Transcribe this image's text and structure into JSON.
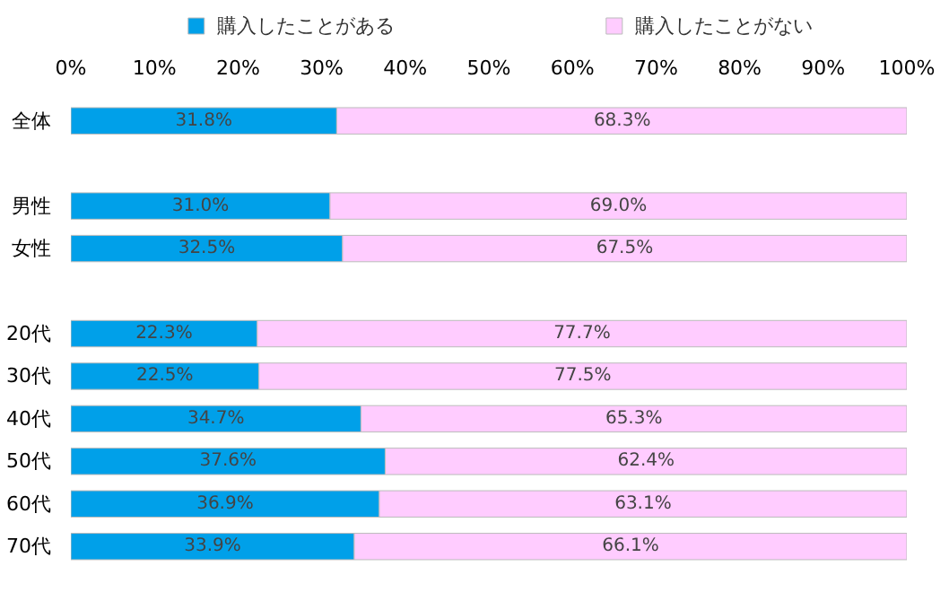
{
  "chart_data": {
    "type": "bar",
    "orientation": "horizontal",
    "stacked": true,
    "categories": [
      "全体",
      null,
      "男性",
      "女性",
      null,
      "20代",
      "30代",
      "40代",
      "50代",
      "60代",
      "70代"
    ],
    "series": [
      {
        "name": "購入したことがある",
        "color": "#00a0e9",
        "values": [
          31.8,
          null,
          31.0,
          32.5,
          null,
          22.3,
          22.5,
          34.7,
          37.6,
          36.9,
          33.9
        ],
        "value_labels": [
          "31.8%",
          null,
          "31.0%",
          "32.5%",
          null,
          "22.3%",
          "22.5%",
          "34.7%",
          "37.6%",
          "36.9%",
          "33.9%"
        ]
      },
      {
        "name": "購入したことがない",
        "color": "#ffccff",
        "values": [
          68.3,
          null,
          69.0,
          67.5,
          null,
          77.7,
          77.5,
          65.3,
          62.4,
          63.1,
          66.1
        ],
        "value_labels": [
          "68.3%",
          null,
          "69.0%",
          "67.5%",
          null,
          "77.7%",
          "77.5%",
          "65.3%",
          "62.4%",
          "63.1%",
          "66.1%"
        ]
      }
    ],
    "xlim": [
      0,
      100
    ],
    "xticks": [
      {
        "value": 0,
        "label": "0%"
      },
      {
        "value": 10,
        "label": "10%"
      },
      {
        "value": 20,
        "label": "20%"
      },
      {
        "value": 30,
        "label": "30%"
      },
      {
        "value": 40,
        "label": "40%"
      },
      {
        "value": 50,
        "label": "50%"
      },
      {
        "value": 60,
        "label": "60%"
      },
      {
        "value": 70,
        "label": "70%"
      },
      {
        "value": 80,
        "label": "80%"
      },
      {
        "value": 90,
        "label": "90%"
      },
      {
        "value": 100,
        "label": "100%"
      }
    ],
    "legend": "top"
  }
}
